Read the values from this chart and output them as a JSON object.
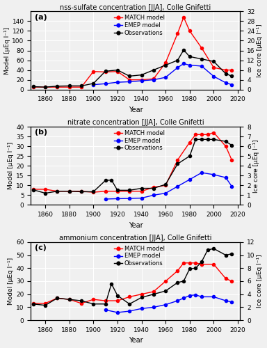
{
  "panel_a": {
    "title": "nss-sulfate concentration [JJA], Colle Gnifetti",
    "label": "(a)",
    "match_x": [
      1850,
      1860,
      1870,
      1880,
      1890,
      1900,
      1910,
      1920,
      1930,
      1940,
      1950,
      1960,
      1970,
      1975,
      1980,
      1990,
      2000,
      2010,
      2015
    ],
    "match_y": [
      5,
      5,
      5,
      5,
      5,
      37,
      36,
      37,
      20,
      20,
      22,
      55,
      115,
      148,
      120,
      85,
      45,
      40,
      40
    ],
    "emep_x": [
      1900,
      1910,
      1920,
      1930,
      1940,
      1950,
      1960,
      1970,
      1975,
      1980,
      1990,
      2000,
      2010,
      2015
    ],
    "emep_y": [
      10,
      12,
      15,
      16,
      18,
      20,
      25,
      45,
      53,
      50,
      48,
      27,
      14,
      10
    ],
    "obs_x": [
      1850,
      1860,
      1870,
      1880,
      1890,
      1900,
      1910,
      1920,
      1930,
      1940,
      1950,
      1960,
      1970,
      1975,
      1980,
      1990,
      2000,
      2010,
      2015
    ],
    "obs_y": [
      1.2,
      1.0,
      1.4,
      1.5,
      1.5,
      2.5,
      7.5,
      8.0,
      5.5,
      6.0,
      8.0,
      10.0,
      12.0,
      16.2,
      13.5,
      12.5,
      11.5,
      6.5,
      5.5
    ],
    "ylim_left": [
      0,
      160
    ],
    "ylim_right": [
      0,
      32
    ],
    "yticks_left": [
      0,
      20,
      40,
      60,
      80,
      100,
      120,
      140
    ],
    "yticks_right": [
      0,
      4,
      8,
      12,
      16,
      20,
      24,
      28,
      32
    ],
    "ylabel_left": "Model [μEq l⁻¹]",
    "ylabel_right": "Ice core [μEq l⁻¹]"
  },
  "panel_b": {
    "title": "nitrate concentration [JJA], Colle Gnifetti",
    "label": "(b)",
    "match_x": [
      1850,
      1860,
      1870,
      1880,
      1890,
      1900,
      1910,
      1920,
      1930,
      1940,
      1950,
      1960,
      1970,
      1980,
      1985,
      1990,
      1995,
      2000,
      2010,
      2015
    ],
    "match_y": [
      8,
      8,
      7,
      7,
      7,
      6.5,
      7,
      7,
      7,
      7,
      9,
      10,
      23,
      32,
      36,
      36,
      36,
      37,
      30,
      23
    ],
    "emep_x": [
      1910,
      1920,
      1930,
      1940,
      1950,
      1960,
      1970,
      1980,
      1990,
      2000,
      2010,
      2015
    ],
    "emep_y": [
      3,
      3.2,
      3.3,
      3.5,
      5,
      6,
      9.5,
      13,
      16.5,
      15.5,
      14,
      9.5
    ],
    "obs_x": [
      1850,
      1860,
      1870,
      1880,
      1890,
      1900,
      1910,
      1915,
      1920,
      1930,
      1940,
      1950,
      1960,
      1970,
      1980,
      1985,
      1990,
      1995,
      2000,
      2010,
      2015
    ],
    "obs_y": [
      1.55,
      1.2,
      1.4,
      1.4,
      1.35,
      1.35,
      2.5,
      2.55,
      1.5,
      1.5,
      1.7,
      1.7,
      2.1,
      4.2,
      5.0,
      6.7,
      6.7,
      6.7,
      6.7,
      6.5,
      6.1
    ],
    "ylim_left": [
      0,
      40
    ],
    "ylim_right": [
      0,
      8
    ],
    "yticks_left": [
      0,
      5,
      10,
      15,
      20,
      25,
      30,
      35,
      40
    ],
    "yticks_right": [
      0,
      1,
      2,
      3,
      4,
      5,
      6,
      7,
      8
    ],
    "ylabel_left": "Model [μEq l⁻¹]",
    "ylabel_right": "Ice core [μEq l⁻¹]"
  },
  "panel_c": {
    "title": "ammonium concentration [JJA], Colle Gnifetti",
    "label": "(c)",
    "match_x": [
      1850,
      1860,
      1870,
      1880,
      1890,
      1900,
      1910,
      1920,
      1930,
      1940,
      1950,
      1960,
      1970,
      1975,
      1980,
      1985,
      1990,
      2000,
      2010,
      2015
    ],
    "match_y": [
      13,
      13,
      17,
      16,
      13,
      16,
      15,
      15,
      18,
      20,
      22,
      30,
      38,
      44,
      44,
      44,
      43,
      43,
      32,
      30
    ],
    "emep_x": [
      1910,
      1920,
      1930,
      1940,
      1950,
      1960,
      1970,
      1975,
      1980,
      1985,
      1990,
      2000,
      2010,
      2015
    ],
    "emep_y": [
      8,
      6,
      7,
      9,
      10,
      12,
      15,
      17,
      19,
      19.5,
      18,
      18,
      15,
      14
    ],
    "obs_x": [
      1850,
      1860,
      1870,
      1880,
      1890,
      1900,
      1910,
      1915,
      1920,
      1930,
      1940,
      1950,
      1960,
      1970,
      1975,
      1980,
      1985,
      1990,
      1995,
      2000,
      2010,
      2015
    ],
    "obs_y": [
      2.5,
      2.3,
      3.4,
      3.2,
      3.0,
      2.5,
      2.5,
      5.6,
      3.8,
      2.5,
      3.5,
      4.0,
      4.5,
      5.8,
      6.0,
      7.9,
      8.0,
      9.0,
      10.8,
      11.0,
      10.0,
      10.2
    ],
    "ylim_left": [
      0,
      60
    ],
    "ylim_right": [
      0,
      12
    ],
    "yticks_left": [
      0,
      10,
      20,
      30,
      40,
      50,
      60
    ],
    "yticks_right": [
      0,
      2,
      4,
      6,
      8,
      10,
      12
    ],
    "ylabel_left": "Model [μEq l⁻¹]",
    "ylabel_right": "Ice core [μEq l⁻¹]"
  },
  "xlim": [
    1848,
    2022
  ],
  "xticks": [
    1860,
    1880,
    1900,
    1920,
    1940,
    1960,
    1980,
    2000,
    2020
  ],
  "xlabel": "Year",
  "match_color": "#ff0000",
  "emep_color": "#0000ff",
  "obs_color": "#000000",
  "legend_labels": [
    "MATCH model",
    "EMEP model",
    "Observations"
  ],
  "bg_color": "#f0f0f0",
  "grid_color": "#ffffff",
  "marker": "o",
  "markersize": 3.0,
  "linewidth": 1.0
}
